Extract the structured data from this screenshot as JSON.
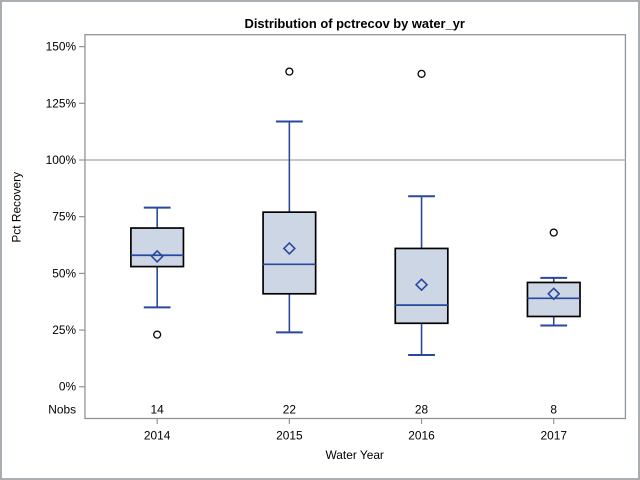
{
  "window": {
    "background_color": "#ffffff",
    "border_color": "#a9aeb2"
  },
  "chart_data": {
    "type": "boxplot",
    "title": "Distribution of pctrecov by water_yr",
    "xlabel": "Water Year",
    "ylabel": "Pct Recovery",
    "nobs_label": "Nobs",
    "categories": [
      "2014",
      "2015",
      "2016",
      "2017"
    ],
    "nobs": [
      14,
      22,
      28,
      8
    ],
    "series": [
      {
        "category": "2014",
        "nobs": 14,
        "whisker_low": 35,
        "q1": 53,
        "median": 58,
        "q3": 70,
        "whisker_high": 79,
        "mean": 57.5,
        "outliers": [
          23
        ]
      },
      {
        "category": "2015",
        "nobs": 22,
        "whisker_low": 24,
        "q1": 41,
        "median": 54,
        "q3": 77,
        "whisker_high": 117,
        "mean": 61,
        "outliers": [
          139
        ]
      },
      {
        "category": "2016",
        "nobs": 28,
        "whisker_low": 14,
        "q1": 28,
        "median": 36,
        "q3": 61,
        "whisker_high": 84,
        "mean": 45,
        "outliers": [
          138
        ]
      },
      {
        "category": "2017",
        "nobs": 8,
        "whisker_low": 27,
        "q1": 31,
        "median": 39,
        "q3": 46,
        "whisker_high": 48,
        "mean": 41,
        "outliers": [
          68
        ]
      }
    ],
    "ylim": [
      0,
      150
    ],
    "ytick_values": [
      0,
      25,
      50,
      75,
      100,
      125,
      150
    ],
    "ytick_labels": [
      "0%",
      "25%",
      "50%",
      "75%",
      "100%",
      "125%",
      "150%"
    ],
    "reference_line": 100,
    "grid": "horizontal reference line at 100% only",
    "legend": "none",
    "colors": {
      "box_fill": "#ccd6e4",
      "box_border": "#000000",
      "whisker": "#29489e",
      "median": "#29489e",
      "mean_marker": "#29489e",
      "outlier": "#000000",
      "reference_line": "#a8a8a8",
      "axis": "#8f9499",
      "text": "#000000"
    }
  }
}
